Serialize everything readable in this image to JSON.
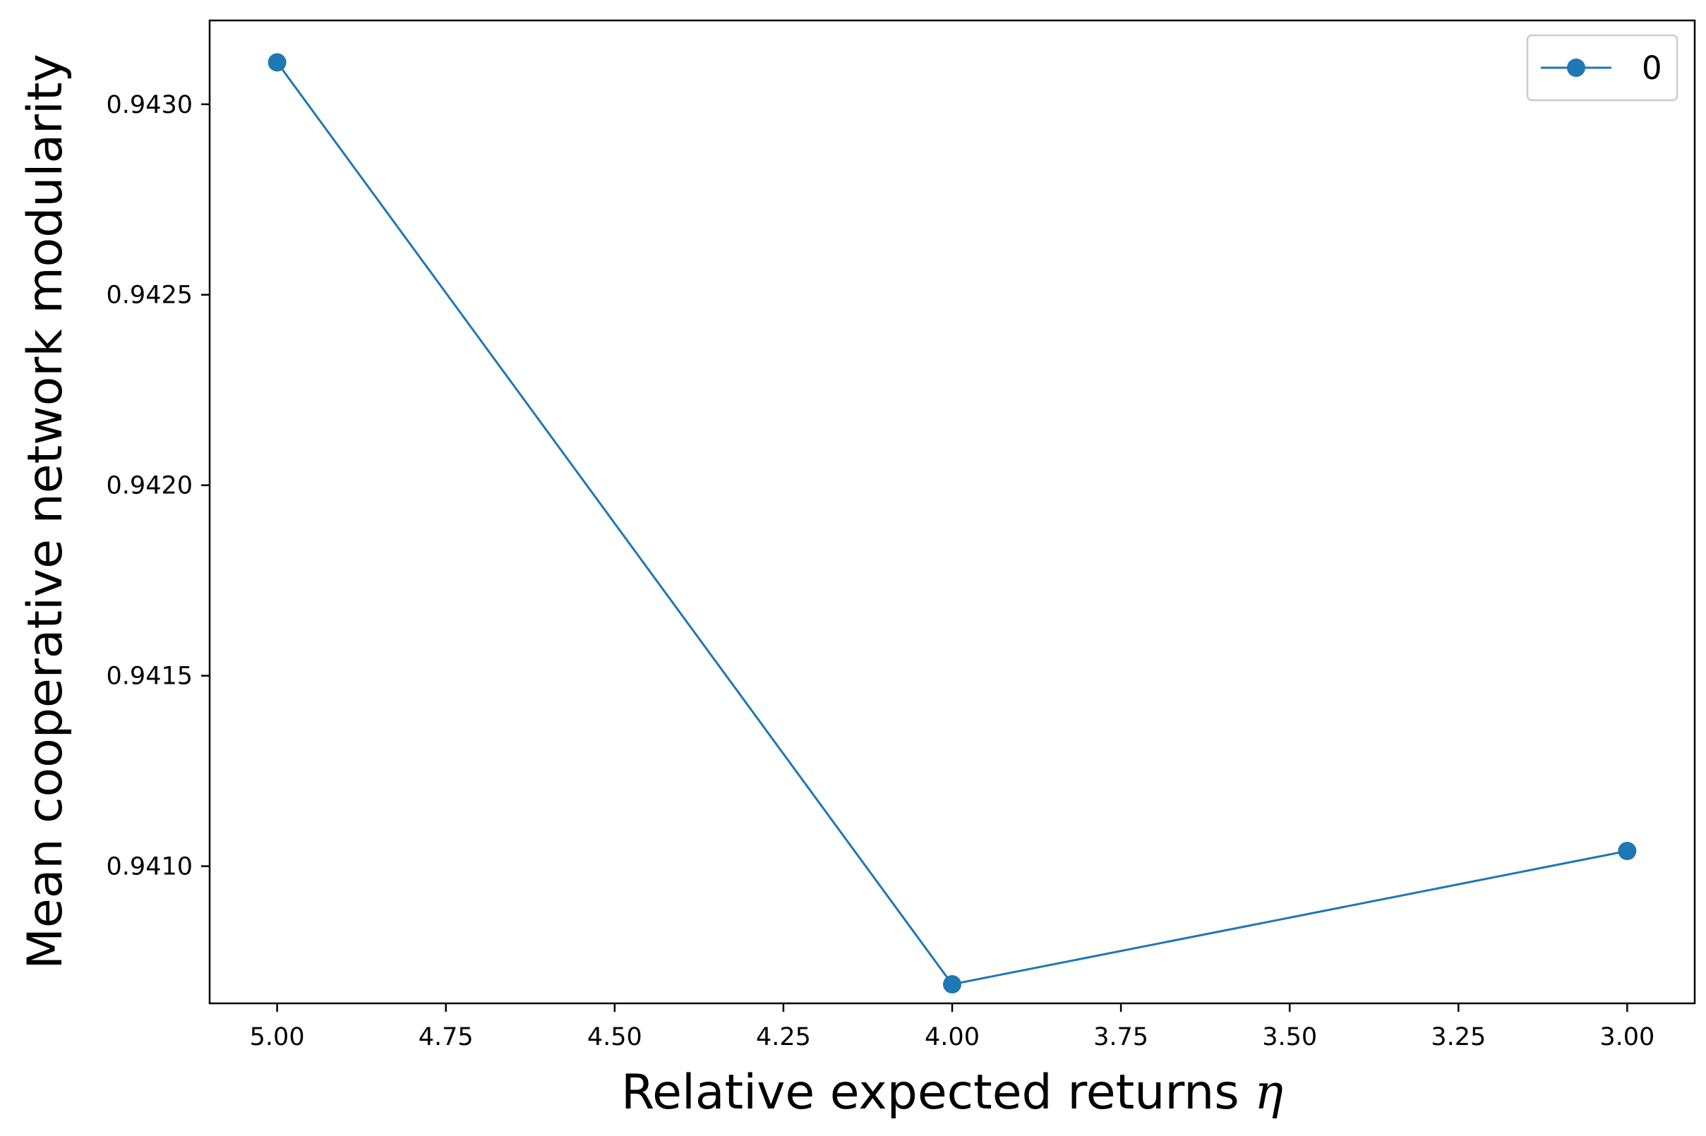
{
  "chart_data": {
    "type": "line",
    "x": [
      5.0,
      4.0,
      3.0
    ],
    "series": [
      {
        "name": "0",
        "values": [
          0.94311,
          0.94069,
          0.94104
        ],
        "color": "#1f77b4",
        "marker": "circle"
      }
    ],
    "xlabel": "Relative expected returns",
    "xlabel_symbol": "η",
    "ylabel": "Mean cooperative network modularity",
    "xlim": [
      5.1,
      2.9
    ],
    "ylim": [
      0.94064,
      0.94322
    ],
    "x_inverted": true,
    "xticks": [
      5.0,
      4.75,
      4.5,
      4.25,
      4.0,
      3.75,
      3.5,
      3.25,
      3.0
    ],
    "xtick_labels": [
      "5.00",
      "4.75",
      "4.50",
      "4.25",
      "4.00",
      "3.75",
      "3.50",
      "3.25",
      "3.00"
    ],
    "yticks": [
      0.941,
      0.9415,
      0.942,
      0.9425,
      0.943
    ],
    "ytick_labels": [
      "0.9410",
      "0.9415",
      "0.9420",
      "0.9425",
      "0.9430"
    ],
    "grid": false,
    "legend": {
      "position": "top-right",
      "entries": [
        "0"
      ]
    }
  }
}
